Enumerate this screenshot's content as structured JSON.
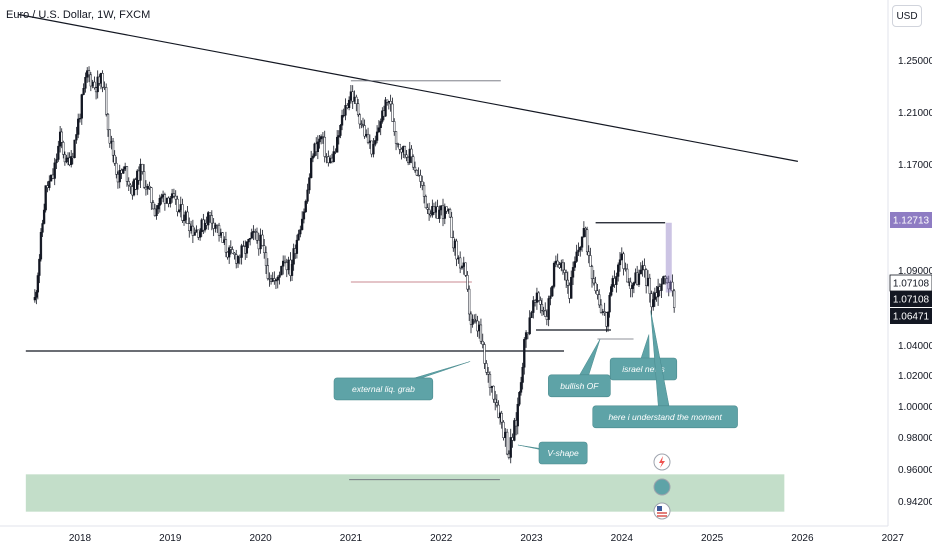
{
  "title": "Euro / U.S. Dollar, 1W, FXCM",
  "currency_button": "USD",
  "colors": {
    "bull": "#131722",
    "bear": "#ffffff",
    "annotation_fill": "#5ea3a7",
    "zone_fill": "#b9d8bf",
    "hline_red": "#b7636b",
    "badge_purple": "#8e7cc3",
    "badge_dark": "#131722"
  },
  "chart_data": {
    "type": "candlestick",
    "title": "Euro / U.S. Dollar, 1W, FXCM",
    "x_ticks": [
      "2018",
      "2019",
      "2020",
      "2021",
      "2022",
      "2023",
      "2024",
      "2025",
      "2026",
      "2027"
    ],
    "y_ticks": [
      "1.25000",
      "1.21000",
      "1.17000",
      "1.13000",
      "1.09000",
      "1.04000",
      "1.02000",
      "1.00000",
      "0.98000",
      "0.96000",
      "0.94200"
    ],
    "price_badges": [
      {
        "label": "1.12713",
        "price": 1.12713,
        "style": "purple"
      },
      {
        "label": "1.07108",
        "price": 1.07108,
        "style": "outline"
      },
      {
        "label": "1.07108",
        "price": 1.07108,
        "style": "dark"
      },
      {
        "label": "1.06471",
        "price": 1.06471,
        "style": "dark"
      }
    ],
    "price_path": [
      [
        2017.5,
        1.07
      ],
      [
        2017.55,
        1.1
      ],
      [
        2017.62,
        1.15
      ],
      [
        2017.7,
        1.16
      ],
      [
        2017.78,
        1.19
      ],
      [
        2017.85,
        1.17
      ],
      [
        2017.92,
        1.18
      ],
      [
        2018.0,
        1.21
      ],
      [
        2018.08,
        1.24
      ],
      [
        2018.16,
        1.23
      ],
      [
        2018.25,
        1.235
      ],
      [
        2018.33,
        1.19
      ],
      [
        2018.42,
        1.16
      ],
      [
        2018.5,
        1.165
      ],
      [
        2018.58,
        1.15
      ],
      [
        2018.67,
        1.165
      ],
      [
        2018.75,
        1.15
      ],
      [
        2018.83,
        1.135
      ],
      [
        2018.92,
        1.145
      ],
      [
        2019.0,
        1.145
      ],
      [
        2019.08,
        1.135
      ],
      [
        2019.17,
        1.13
      ],
      [
        2019.25,
        1.12
      ],
      [
        2019.33,
        1.12
      ],
      [
        2019.42,
        1.13
      ],
      [
        2019.5,
        1.125
      ],
      [
        2019.58,
        1.11
      ],
      [
        2019.67,
        1.1
      ],
      [
        2019.75,
        1.1
      ],
      [
        2019.83,
        1.105
      ],
      [
        2019.92,
        1.115
      ],
      [
        2020.0,
        1.11
      ],
      [
        2020.08,
        1.09
      ],
      [
        2020.17,
        1.08
      ],
      [
        2020.25,
        1.1
      ],
      [
        2020.33,
        1.09
      ],
      [
        2020.42,
        1.12
      ],
      [
        2020.5,
        1.14
      ],
      [
        2020.58,
        1.18
      ],
      [
        2020.67,
        1.19
      ],
      [
        2020.75,
        1.17
      ],
      [
        2020.83,
        1.18
      ],
      [
        2020.92,
        1.21
      ],
      [
        2021.0,
        1.225
      ],
      [
        2021.08,
        1.21
      ],
      [
        2021.17,
        1.19
      ],
      [
        2021.25,
        1.18
      ],
      [
        2021.33,
        1.205
      ],
      [
        2021.42,
        1.22
      ],
      [
        2021.5,
        1.19
      ],
      [
        2021.58,
        1.18
      ],
      [
        2021.67,
        1.175
      ],
      [
        2021.75,
        1.16
      ],
      [
        2021.83,
        1.14
      ],
      [
        2021.92,
        1.13
      ],
      [
        2022.0,
        1.135
      ],
      [
        2022.08,
        1.13
      ],
      [
        2022.17,
        1.1
      ],
      [
        2022.25,
        1.09
      ],
      [
        2022.33,
        1.055
      ],
      [
        2022.42,
        1.05
      ],
      [
        2022.5,
        1.02
      ],
      [
        2022.58,
        1.01
      ],
      [
        2022.67,
        0.99
      ],
      [
        2022.75,
        0.97
      ],
      [
        2022.83,
        0.99
      ],
      [
        2022.92,
        1.04
      ],
      [
        2023.0,
        1.065
      ],
      [
        2023.08,
        1.07
      ],
      [
        2023.17,
        1.06
      ],
      [
        2023.25,
        1.09
      ],
      [
        2023.33,
        1.1
      ],
      [
        2023.42,
        1.075
      ],
      [
        2023.5,
        1.1
      ],
      [
        2023.58,
        1.12
      ],
      [
        2023.67,
        1.09
      ],
      [
        2023.75,
        1.07
      ],
      [
        2023.83,
        1.055
      ],
      [
        2023.9,
        1.08
      ],
      [
        2024.0,
        1.1
      ],
      [
        2024.08,
        1.08
      ],
      [
        2024.17,
        1.085
      ],
      [
        2024.25,
        1.09
      ],
      [
        2024.33,
        1.07
      ],
      [
        2024.42,
        1.08
      ],
      [
        2024.5,
        1.085
      ],
      [
        2024.58,
        1.07
      ]
    ],
    "drawings": {
      "trendline": {
        "from": [
          2017.32,
          1.285
        ],
        "to": [
          2025.95,
          1.172
        ]
      },
      "zone": {
        "from_year": 2017.4,
        "to_year": 2025.8,
        "from_price": 0.936,
        "to_price": 0.957
      },
      "hlines": [
        {
          "from_year": 2017.4,
          "to_year": 2023.36,
          "price": 1.036,
          "color": "black"
        },
        {
          "from_year": 2021.0,
          "to_year": 2022.66,
          "price": 1.234,
          "color": "gray"
        },
        {
          "from_year": 2021.0,
          "to_year": 2022.34,
          "price": 1.082,
          "color": "red"
        },
        {
          "from_year": 2020.98,
          "to_year": 2022.65,
          "price": 0.954,
          "color": "gray"
        },
        {
          "from_year": 2023.05,
          "to_year": 2023.88,
          "price": 1.05,
          "color": "black"
        },
        {
          "from_year": 2023.73,
          "to_year": 2024.13,
          "price": 1.044,
          "color": "gray"
        },
        {
          "from_year": 2023.71,
          "to_year": 2024.48,
          "price": 1.125,
          "color": "black"
        }
      ],
      "position_tool": {
        "year": 2024.52,
        "from_price": 1.075,
        "to_price": 1.125
      }
    },
    "annotations": [
      {
        "text": "external liq. grab",
        "year": 2021.36,
        "price": 1.011,
        "pointer": [
          2022.32,
          1.029
        ]
      },
      {
        "text": "bullish OF",
        "year": 2023.53,
        "price": 1.013,
        "pointer": [
          2023.76,
          1.044
        ]
      },
      {
        "text": "israel news",
        "year": 2024.24,
        "price": 1.024,
        "pointer": [
          2024.3,
          1.047
        ]
      },
      {
        "text": "here i understand the moment",
        "year": 2024.48,
        "price": 0.993,
        "pointer": [
          2024.32,
          1.063
        ]
      },
      {
        "text": "V-shape",
        "year": 2023.35,
        "price": 0.97,
        "pointer": [
          2022.85,
          0.975
        ]
      }
    ]
  }
}
